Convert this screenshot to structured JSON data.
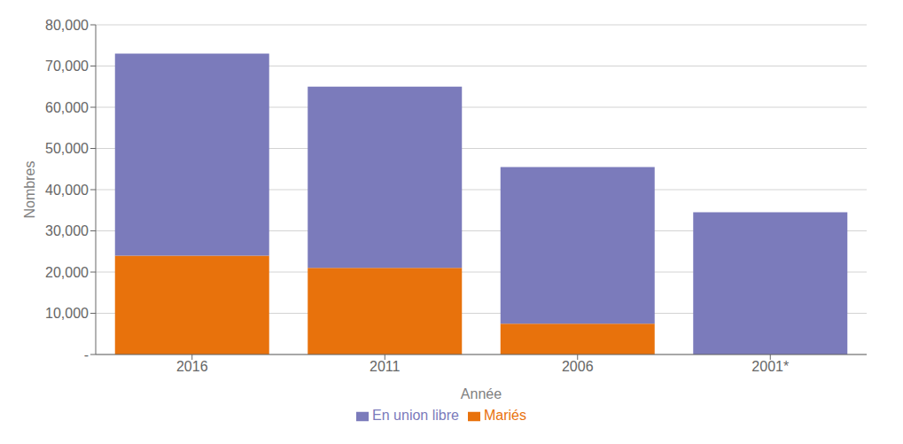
{
  "chart_data": {
    "type": "bar",
    "categories": [
      "2016",
      "2011",
      "2006",
      "2001*"
    ],
    "series": [
      {
        "name": "Mariés",
        "color": "#E8720C",
        "values": [
          24000,
          21000,
          7500,
          0
        ]
      },
      {
        "name": "En union libre",
        "color": "#7B7BBB",
        "values": [
          49000,
          44000,
          38000,
          34500
        ]
      }
    ],
    "stacked": true,
    "xlabel": "Année",
    "ylabel": "Nombres",
    "ylim": [
      0,
      80000
    ],
    "yticks": [
      {
        "value": 0,
        "label": "-"
      },
      {
        "value": 10000,
        "label": "10,000"
      },
      {
        "value": 20000,
        "label": "20,000"
      },
      {
        "value": 30000,
        "label": "30,000"
      },
      {
        "value": 40000,
        "label": "40,000"
      },
      {
        "value": 50000,
        "label": "50,000"
      },
      {
        "value": 60000,
        "label": "60,000"
      },
      {
        "value": 70000,
        "label": "70,000"
      },
      {
        "value": 80000,
        "label": "80,000"
      }
    ],
    "grid": true,
    "legend": "bottom"
  }
}
